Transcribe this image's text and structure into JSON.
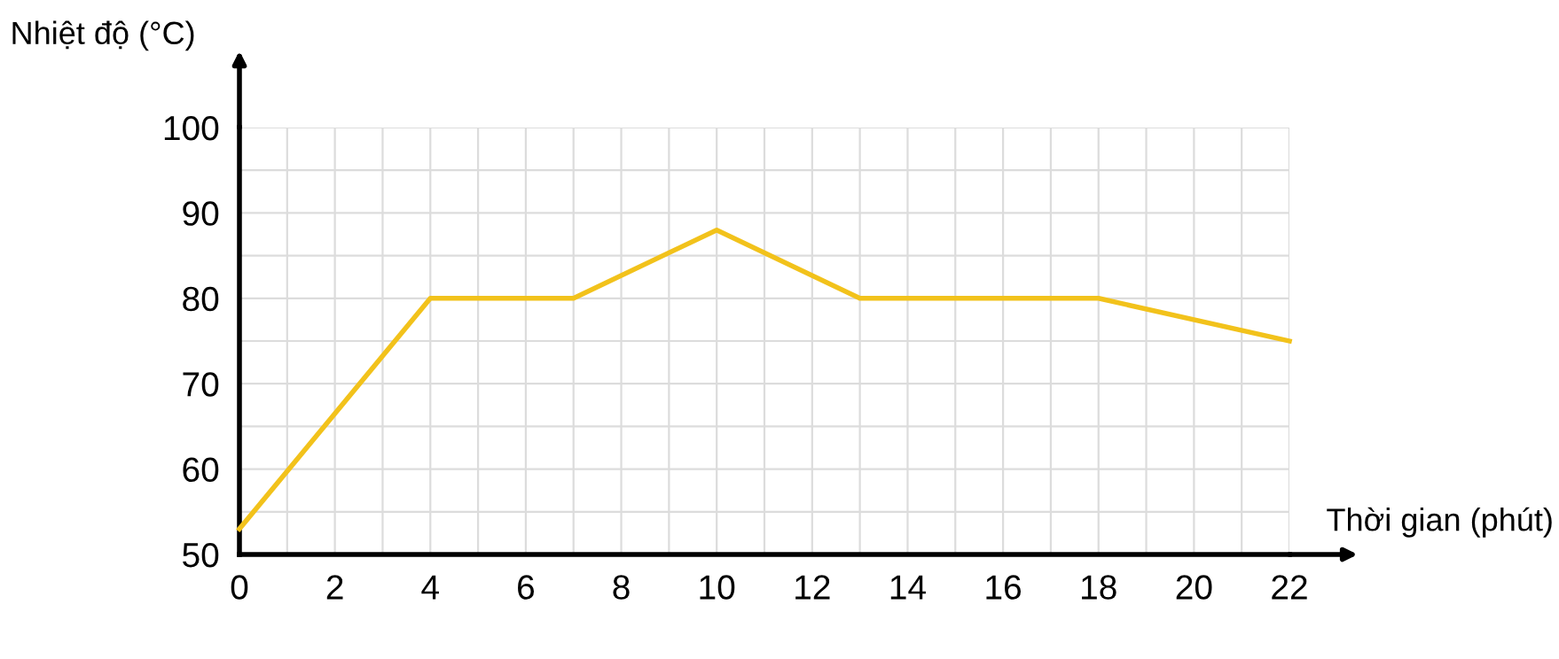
{
  "chart_data": {
    "type": "line",
    "xlabel": "Thời gian (phút)",
    "ylabel": "Nhiệt độ (°C)",
    "x": [
      0,
      4,
      7,
      10,
      13,
      18,
      22
    ],
    "series": [
      {
        "color": "#f2c21b",
        "values": [
          53,
          80,
          80,
          88,
          80,
          80,
          75
        ]
      }
    ],
    "xlim": [
      0,
      22
    ],
    "xticks": [
      0,
      2,
      4,
      6,
      8,
      10,
      12,
      14,
      16,
      18,
      20,
      22
    ],
    "ylim": [
      50,
      100
    ],
    "yticks": [
      50,
      60,
      70,
      80,
      90,
      100
    ],
    "grid": true,
    "marker": "none",
    "line_style": "solid"
  }
}
